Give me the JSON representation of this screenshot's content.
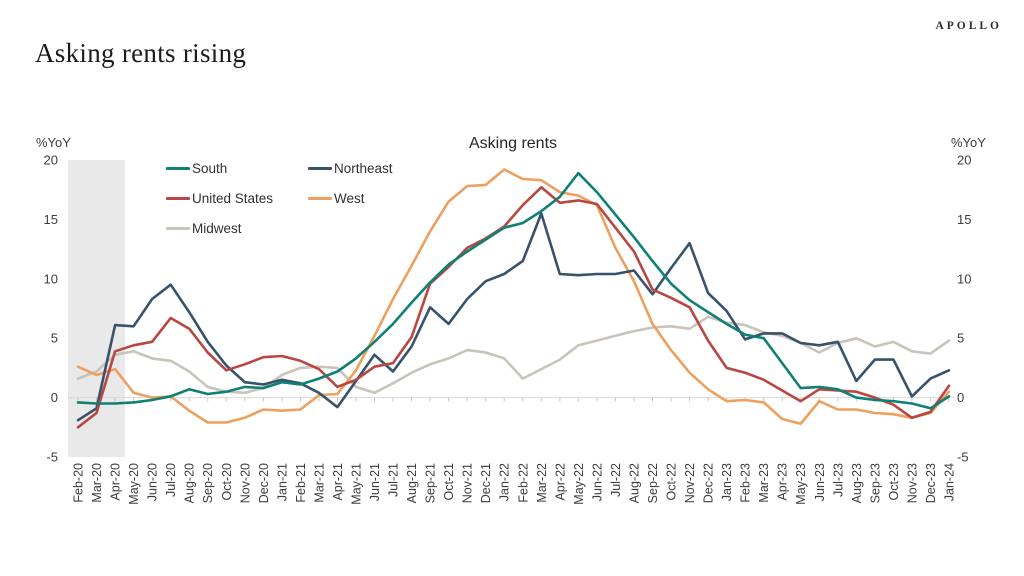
{
  "header": {
    "title": "Asking rents rising",
    "logo": "APOLLO"
  },
  "chart_data": {
    "type": "line",
    "title": "Asking rents",
    "ylabel": "%YoY",
    "ylim": [
      -5,
      20
    ],
    "yticks": [
      20,
      15,
      10,
      5,
      0,
      -5
    ],
    "grid": "zero-line-only",
    "legend_position": "top-left",
    "recession_band": [
      "Feb-20",
      "Apr-20"
    ],
    "recession_band_color": "#e9e9e9",
    "categories": [
      "Feb-20",
      "Mar-20",
      "Apr-20",
      "May-20",
      "Jun-20",
      "Jul-20",
      "Aug-20",
      "Sep-20",
      "Oct-20",
      "Nov-20",
      "Dec-20",
      "Jan-21",
      "Feb-21",
      "Mar-21",
      "Apr-21",
      "May-21",
      "Jun-21",
      "Jul-21",
      "Aug-21",
      "Sep-21",
      "Oct-21",
      "Nov-21",
      "Dec-21",
      "Jan-22",
      "Feb-22",
      "Mar-22",
      "Apr-22",
      "May-22",
      "Jun-22",
      "Jul-22",
      "Aug-22",
      "Sep-22",
      "Oct-22",
      "Nov-22",
      "Dec-22",
      "Jan-23",
      "Feb-23",
      "Mar-23",
      "Apr-23",
      "May-23",
      "Jun-23",
      "Jul-23",
      "Aug-23",
      "Sep-23",
      "Oct-23",
      "Nov-23",
      "Dec-23",
      "Jan-24"
    ],
    "series": [
      {
        "name": "South",
        "color": "#0e8174",
        "values": [
          -0.4,
          -0.5,
          -0.5,
          -0.4,
          -0.2,
          0.1,
          0.7,
          0.3,
          0.5,
          0.9,
          0.8,
          1.3,
          1.1,
          1.6,
          2.2,
          3.3,
          4.7,
          6.2,
          8.0,
          9.7,
          11.2,
          12.3,
          13.3,
          14.3,
          14.7,
          15.7,
          16.9,
          18.9,
          17.3,
          15.4,
          13.5,
          11.5,
          9.6,
          8.2,
          7.2,
          6.2,
          5.3,
          5.0,
          2.9,
          0.8,
          0.9,
          0.7,
          0.0,
          -0.2,
          -0.3,
          -0.5,
          -0.9,
          0.1
        ]
      },
      {
        "name": "Northeast",
        "color": "#36536b",
        "values": [
          -1.9,
          -0.9,
          6.1,
          6.0,
          8.3,
          9.5,
          7.2,
          4.7,
          2.7,
          1.3,
          1.1,
          1.5,
          1.2,
          0.4,
          -0.8,
          1.4,
          3.6,
          2.2,
          4.3,
          7.6,
          6.2,
          8.3,
          9.8,
          10.4,
          11.5,
          15.5,
          10.4,
          10.3,
          10.4,
          10.4,
          10.7,
          8.7,
          10.9,
          13.0,
          8.8,
          7.3,
          4.9,
          5.4,
          5.4,
          4.6,
          4.4,
          4.7,
          1.4,
          3.2,
          3.2,
          0.1,
          1.6,
          2.3
        ]
      },
      {
        "name": "United States",
        "color": "#b94641",
        "values": [
          -2.5,
          -1.3,
          3.9,
          4.4,
          4.7,
          6.7,
          5.8,
          3.8,
          2.3,
          2.8,
          3.4,
          3.5,
          3.1,
          2.4,
          0.9,
          1.5,
          2.6,
          2.9,
          5.1,
          9.6,
          11.0,
          12.6,
          13.4,
          14.4,
          16.2,
          17.7,
          16.4,
          16.6,
          16.3,
          14.3,
          12.3,
          9.1,
          8.4,
          7.6,
          4.8,
          2.5,
          2.1,
          1.5,
          0.6,
          -0.3,
          0.7,
          0.6,
          0.5,
          0.0,
          -0.6,
          -1.7,
          -1.2,
          1.0
        ]
      },
      {
        "name": "West",
        "color": "#eda05e",
        "values": [
          2.6,
          1.9,
          2.4,
          0.4,
          0.0,
          0.1,
          -1.1,
          -2.1,
          -2.1,
          -1.7,
          -1.0,
          -1.1,
          -1.0,
          0.2,
          0.3,
          2.3,
          5.2,
          8.3,
          11.1,
          14.0,
          16.5,
          17.8,
          17.9,
          19.2,
          18.4,
          18.3,
          17.3,
          17.0,
          16.2,
          12.6,
          9.8,
          6.2,
          4.0,
          2.1,
          0.7,
          -0.3,
          -0.2,
          -0.4,
          -1.8,
          -2.2,
          -0.3,
          -1.0,
          -1.0,
          -1.3,
          -1.4,
          -1.7,
          -1.3,
          0.5
        ]
      },
      {
        "name": "Midwest",
        "color": "#c9c3ba",
        "values": [
          1.6,
          2.2,
          3.6,
          3.9,
          3.3,
          3.1,
          2.2,
          0.9,
          0.5,
          0.4,
          0.8,
          1.9,
          2.5,
          2.6,
          2.5,
          0.9,
          0.4,
          1.2,
          2.1,
          2.8,
          3.3,
          4.0,
          3.8,
          3.3,
          1.6,
          2.4,
          3.2,
          4.4,
          4.8,
          5.2,
          5.6,
          5.9,
          6.0,
          5.8,
          6.8,
          6.3,
          6.1,
          5.5,
          5.2,
          4.6,
          3.8,
          4.6,
          5.0,
          4.3,
          4.7,
          3.9,
          3.7,
          4.8
        ]
      }
    ]
  }
}
